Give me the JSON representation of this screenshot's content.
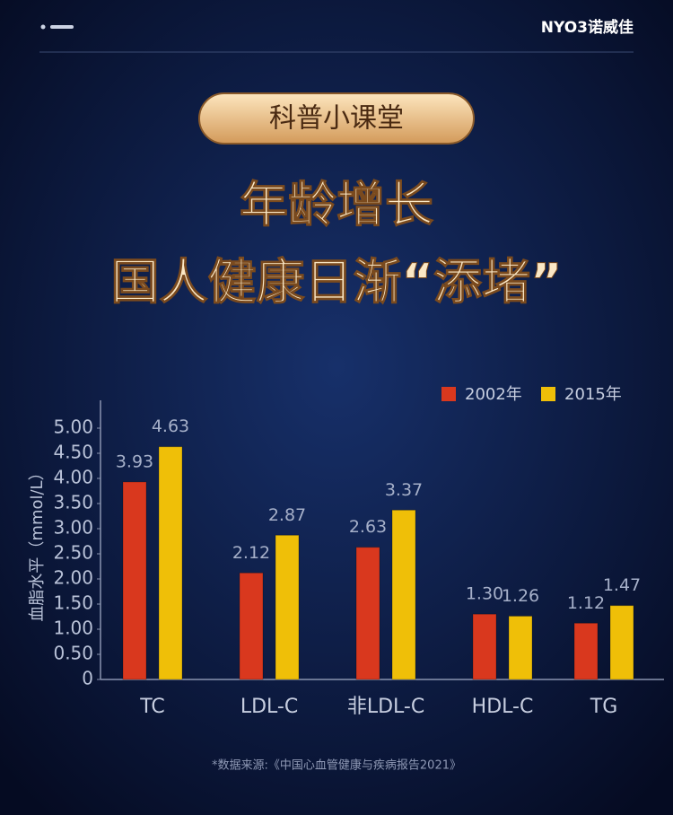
{
  "header": {
    "brand": "NYO3诺威佳"
  },
  "badge": "科普小课堂",
  "title": [
    "年龄增长",
    "国人健康日渐“添堵”"
  ],
  "chart_data": {
    "type": "bar",
    "y_label": "血脂水平（mmol/L）",
    "categories": [
      "TC",
      "LDL-C",
      "非LDL-C",
      "HDL-C",
      "TG"
    ],
    "series": [
      {
        "name": "2002年",
        "color": "#d9381e",
        "values": [
          3.93,
          2.12,
          2.63,
          1.3,
          1.12
        ],
        "value_labels": [
          "3.93",
          "2.12",
          "2.63",
          "1.30",
          "1.12"
        ]
      },
      {
        "name": "2015年",
        "color": "#efbf08",
        "values": [
          4.63,
          2.87,
          3.37,
          1.26,
          1.47
        ],
        "value_labels": [
          "4.63",
          "2.87",
          "3.37",
          "1.26",
          "1.47"
        ]
      }
    ],
    "ylim": [
      0,
      5.5
    ],
    "yticks": [
      0,
      {
        "value": 0.5,
        "label": "0.50"
      },
      {
        "value": 1,
        "label": "1.00"
      },
      {
        "value": 1.5,
        "label": "1.50"
      },
      {
        "value": 2,
        "label": "2.00"
      },
      {
        "value": 2.5,
        "label": "2.50"
      },
      {
        "value": 3,
        "label": "3.00"
      },
      {
        "value": 3.5,
        "label": "3.50"
      },
      {
        "value": 4,
        "label": "4.00"
      },
      {
        "value": 4.5,
        "label": "4.50"
      },
      {
        "value": 5,
        "label": "5.00"
      }
    ],
    "legend": "top-right"
  },
  "source": "*数据来源:《中国心血管健康与疾病报告2021》"
}
